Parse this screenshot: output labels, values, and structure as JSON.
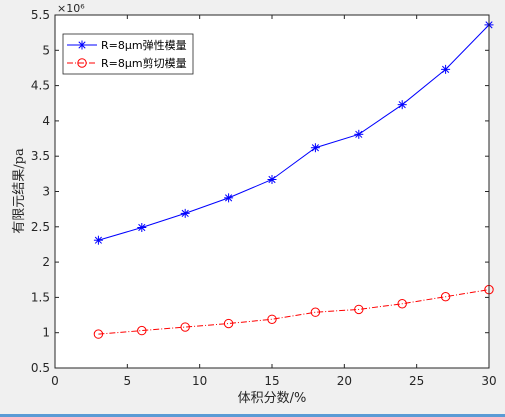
{
  "chart_data": {
    "type": "line",
    "title": "",
    "xlabel": "体积分数/%",
    "ylabel": "有限元结果/pa",
    "y_exponent_label": "×10⁶",
    "xlim": [
      0,
      30
    ],
    "ylim": [
      0.5,
      5.5
    ],
    "xticks": [
      0,
      5,
      10,
      15,
      20,
      25,
      30
    ],
    "yticks": [
      0.5,
      1,
      1.5,
      2,
      2.5,
      3,
      3.5,
      4,
      4.5,
      5,
      5.5
    ],
    "grid": false,
    "legend_position": "top-left",
    "series": [
      {
        "name": "R=8μm弹性模量",
        "color": "#0000ff",
        "line_style": "solid",
        "marker": "asterisk",
        "x": [
          3,
          6,
          9,
          12,
          15,
          18,
          21,
          24,
          27,
          30
        ],
        "y": [
          2.31,
          2.49,
          2.69,
          2.91,
          3.17,
          3.62,
          3.81,
          4.23,
          4.73,
          5.36
        ]
      },
      {
        "name": "R=8μm剪切模量",
        "color": "#ff0000",
        "line_style": "dash-dot",
        "marker": "circle",
        "x": [
          3,
          6,
          9,
          12,
          15,
          18,
          21,
          24,
          27,
          30
        ],
        "y": [
          0.98,
          1.03,
          1.08,
          1.13,
          1.19,
          1.29,
          1.33,
          1.41,
          1.51,
          1.61
        ]
      }
    ]
  }
}
